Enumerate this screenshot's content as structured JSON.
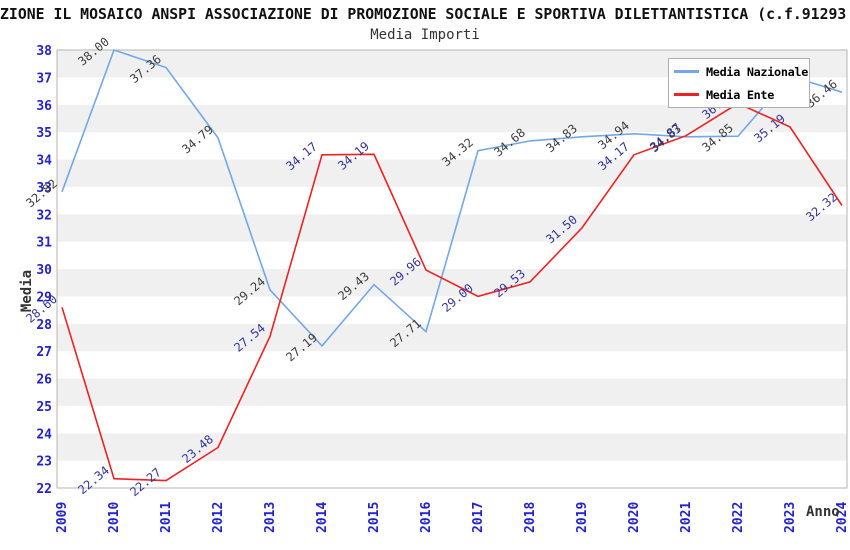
{
  "header": {
    "title": "ZIONE IL MOSAICO ANSPI ASSOCIAZIONE DI PROMOZIONE SOCIALE E SPORTIVA DILETTANTISTICA (c.f.91293",
    "subtitle": "Media Importi"
  },
  "legend": {
    "items": [
      {
        "label": "Media Nazionale",
        "color": "#74a7e8"
      },
      {
        "label": "Media Ente",
        "color": "#ee2222"
      }
    ]
  },
  "colors": {
    "tick_labels": "#2323cc",
    "band_gray": "#f0f0f0",
    "plot_border": "#b6b6b6",
    "blue_series_line": "#74a7e8",
    "blue_series_value_labels": "#3c3c3c",
    "red_series_line": "#ee2222",
    "red_series_value_labels": "#333399"
  },
  "chart_data": {
    "type": "line",
    "title": "Media Importi",
    "xlabel": "Anno",
    "ylabel": "Media",
    "ylim": [
      22,
      38
    ],
    "y_ticks": [
      22,
      23,
      24,
      25,
      26,
      27,
      28,
      29,
      30,
      31,
      32,
      33,
      34,
      35,
      36,
      37,
      38
    ],
    "grid": "alternating horizontal gray/white bands per unit",
    "legend_position": "top-right",
    "categories": [
      "2009",
      "2010",
      "2011",
      "2012",
      "2013",
      "2014",
      "2015",
      "2016",
      "2017",
      "2018",
      "2019",
      "2020",
      "2021",
      "2022",
      "2023",
      "2024"
    ],
    "series": [
      {
        "name": "Media Nazionale",
        "color": "#74a7e8",
        "label_color": "#3c3c3c",
        "values": [
          32.82,
          38.0,
          37.36,
          34.79,
          29.24,
          27.19,
          29.43,
          27.71,
          34.32,
          34.68,
          34.83,
          34.94,
          34.83,
          34.85,
          37.05,
          36.46
        ]
      },
      {
        "name": "Media Ente",
        "color": "#ee2222",
        "label_color": "#333399",
        "values": [
          28.6,
          22.34,
          22.27,
          23.48,
          27.54,
          34.17,
          34.19,
          29.96,
          29.0,
          29.53,
          31.5,
          34.17,
          34.87,
          36.05,
          35.19,
          32.32
        ]
      }
    ]
  }
}
